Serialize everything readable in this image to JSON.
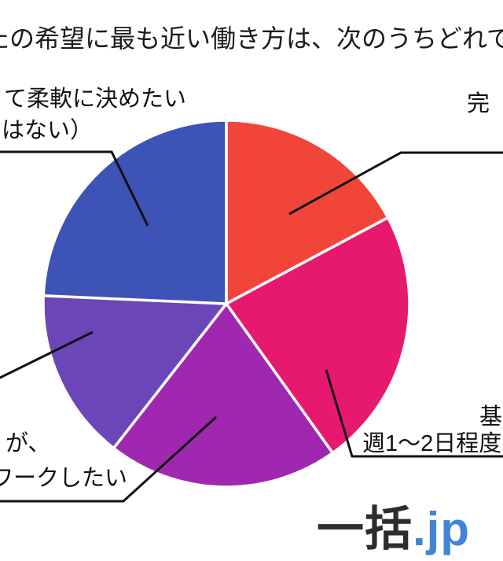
{
  "title": {
    "visible_text": "たの希望に最も近い働き方は、次のうちどれで"
  },
  "labels": {
    "top_left_line1": "て柔軟に決めたい",
    "top_left_line2": "はない）",
    "top_right": "完",
    "right_line1": "基",
    "right_line2": "週1～2日程度",
    "bottom_left_line1": "が、",
    "bottom_left_line2": "ワークしたい"
  },
  "logo": {
    "part1": "一括",
    "part2": ".jp",
    "part1_color": "#2d2d2d",
    "part2_color": "#4285d8"
  },
  "colors": {
    "slice_border": "#ffffff",
    "leader_line": "#111111",
    "text": "#111111"
  },
  "chart_data": {
    "type": "pie",
    "title_visible": "たの希望に最も近い働き方は、次のうちどれで",
    "legend_position": "outside-callouts",
    "slices": [
      {
        "position": "top-right",
        "visible_label": "完",
        "color": "#F24539",
        "start_angle": 0,
        "end_angle": 62,
        "percent_est": 17.2
      },
      {
        "position": "right",
        "visible_label": "基 / 週1～2日程度",
        "color": "#E6196E",
        "start_angle": 62,
        "end_angle": 144.5,
        "percent_est": 22.9
      },
      {
        "position": "bottom",
        "visible_label": "が、 / ワークしたい",
        "color": "#A028B0",
        "start_angle": 144.5,
        "end_angle": 218,
        "percent_est": 20.4
      },
      {
        "position": "left",
        "visible_label": "",
        "color": "#6A46B8",
        "start_angle": 218,
        "end_angle": 272.5,
        "percent_est": 15.1
      },
      {
        "position": "top-left",
        "visible_label": "て柔軟に決めたい はない）",
        "color": "#3E53B6",
        "start_angle": 272.5,
        "end_angle": 360,
        "percent_est": 24.3
      }
    ]
  }
}
